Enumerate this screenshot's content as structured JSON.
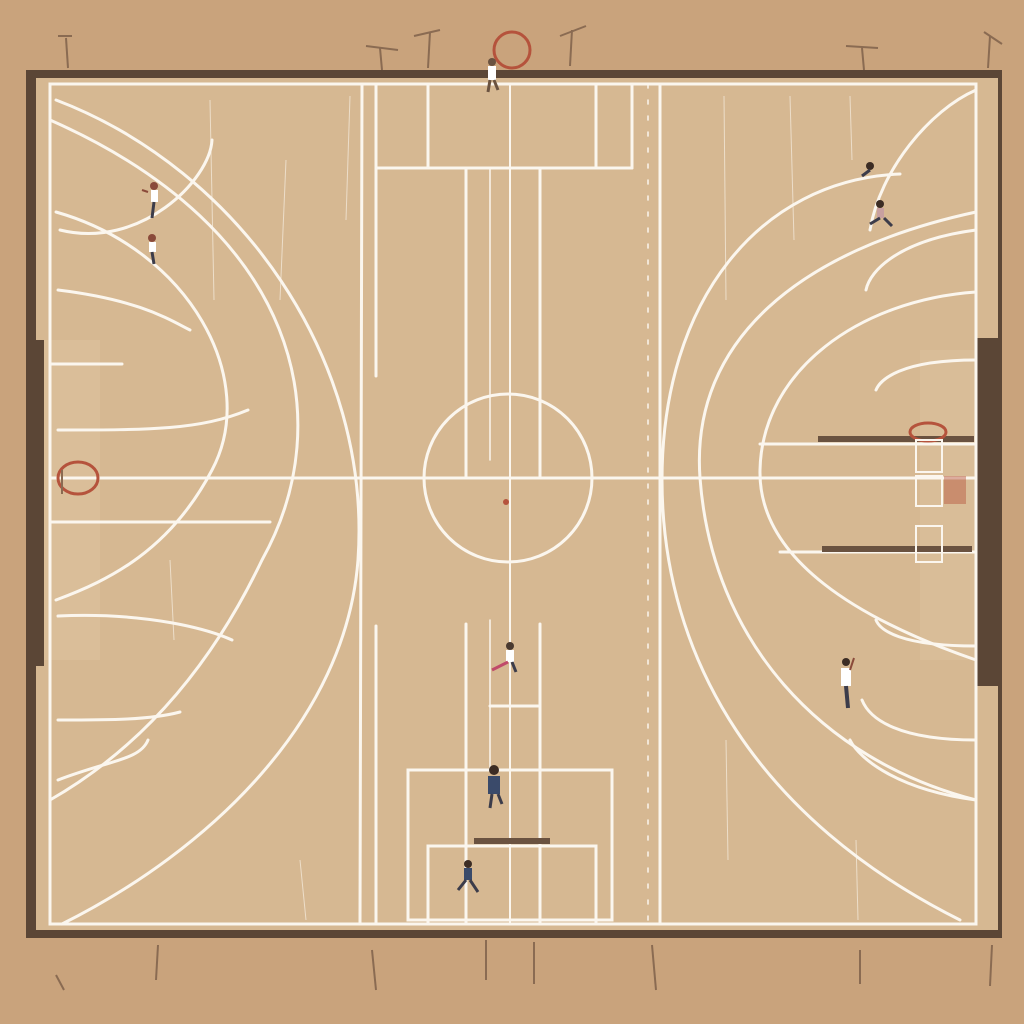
{
  "scene": {
    "subject": "basketball-court",
    "view": "top-down",
    "player_count": 9,
    "hoop_count": 3
  },
  "colors": {
    "surround": "#c9a37c",
    "court_floor": "#d6b892",
    "court_floor_light": "#dcc19d",
    "court_border": "#5b4636",
    "lines": "#fbf6ee",
    "hoop_rim": "#b5533c",
    "backboard": "#6a5240",
    "shadow": "#8a6b52"
  }
}
